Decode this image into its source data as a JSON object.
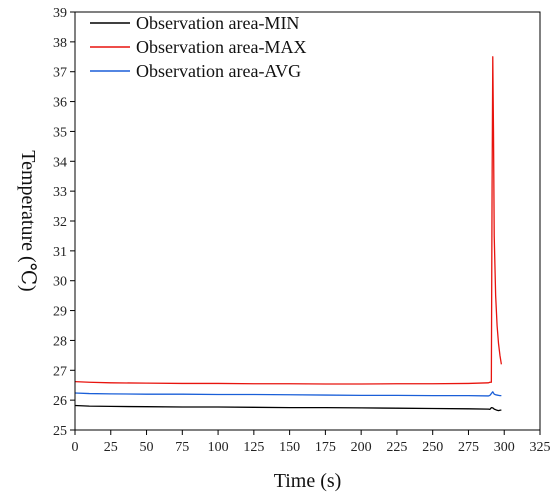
{
  "chart_data": {
    "type": "line",
    "title": "",
    "xlabel": "Time (s)",
    "ylabel": "Temperature (℃)",
    "xlim": [
      0,
      325
    ],
    "ylim": [
      25,
      39
    ],
    "xticks": [
      "0",
      "25",
      "50",
      "75",
      "100",
      "125",
      "150",
      "175",
      "200",
      "225",
      "250",
      "275",
      "300",
      "325"
    ],
    "yticks": [
      "25",
      "26",
      "27",
      "28",
      "29",
      "30",
      "31",
      "32",
      "33",
      "34",
      "35",
      "36",
      "37",
      "38",
      "39"
    ],
    "grid": false,
    "legend_position": "top-left",
    "series": [
      {
        "name": "Observation area-MIN",
        "color": "#000000",
        "x": [
          0,
          10,
          25,
          50,
          75,
          100,
          125,
          150,
          175,
          200,
          225,
          250,
          275,
          289,
          290,
          291,
          292,
          293,
          294,
          295,
          296,
          297,
          298
        ],
        "y": [
          25.82,
          25.8,
          25.79,
          25.78,
          25.77,
          25.77,
          25.76,
          25.75,
          25.75,
          25.74,
          25.73,
          25.72,
          25.71,
          25.7,
          25.69,
          25.75,
          25.74,
          25.7,
          25.68,
          25.66,
          25.65,
          25.66,
          25.67
        ]
      },
      {
        "name": "Observation area-MAX",
        "color": "#e8140e",
        "x": [
          0,
          10,
          25,
          50,
          75,
          100,
          125,
          150,
          175,
          200,
          225,
          250,
          275,
          289,
          290,
          291,
          291.5,
          292,
          292.5,
          293,
          294,
          295,
          296,
          297,
          298
        ],
        "y": [
          26.62,
          26.6,
          26.58,
          26.57,
          26.56,
          26.56,
          26.55,
          26.55,
          26.54,
          26.54,
          26.55,
          26.55,
          26.56,
          26.58,
          26.6,
          26.6,
          33.1,
          37.5,
          35.0,
          31.5,
          29.5,
          28.5,
          27.9,
          27.5,
          27.2
        ]
      },
      {
        "name": "Observation area-AVG",
        "color": "#1a5fd8",
        "x": [
          0,
          10,
          25,
          50,
          75,
          100,
          125,
          150,
          175,
          200,
          225,
          250,
          275,
          289,
          290,
          291,
          292,
          293,
          294,
          295,
          296,
          297,
          298
        ],
        "y": [
          26.24,
          26.22,
          26.21,
          26.2,
          26.2,
          26.19,
          26.19,
          26.18,
          26.17,
          26.16,
          26.16,
          26.15,
          26.15,
          26.14,
          26.16,
          26.22,
          26.28,
          26.2,
          26.18,
          26.17,
          26.16,
          26.15,
          26.15
        ]
      }
    ]
  }
}
